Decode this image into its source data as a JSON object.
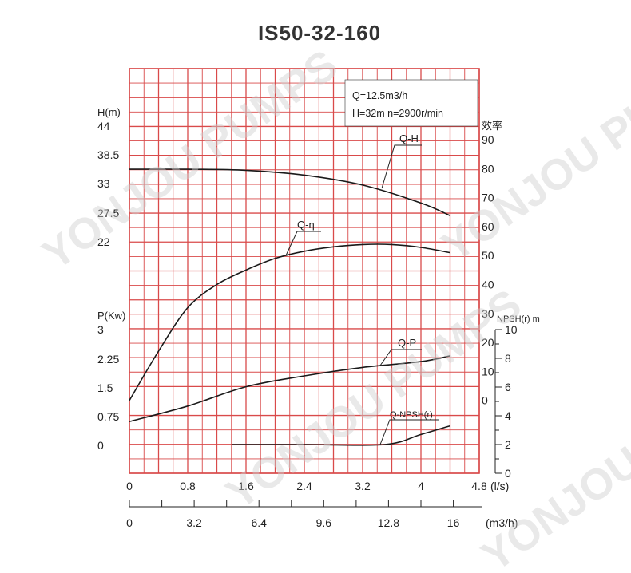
{
  "title": "IS50-32-160",
  "watermark": "YONJOU PUMPS",
  "info_box": {
    "line1": "Q=12.5m3/h",
    "line2": "H=32m  n=2900r/min"
  },
  "axes": {
    "x_ls": {
      "ticks": [
        "0",
        "0.8",
        "1.6",
        "2.4",
        "3.2",
        "4",
        "4.8"
      ],
      "unit": "(l/s)"
    },
    "x_m3h": {
      "ticks": [
        "0",
        "3.2",
        "6.4",
        "9.6",
        "12.8",
        "16"
      ],
      "unit": "(m3/h)"
    },
    "head": {
      "label": "H(m)",
      "ticks": [
        "44",
        "38.5",
        "33",
        "27.5",
        "22"
      ]
    },
    "power": {
      "label": "P(Kw)",
      "ticks": [
        "3",
        "2.25",
        "1.5",
        "0.75",
        "0"
      ]
    },
    "eff": {
      "label": "效率",
      "ticks": [
        "90",
        "80",
        "70",
        "60",
        "50",
        "40",
        "30",
        "20",
        "10",
        "0"
      ]
    },
    "npsh": {
      "label": "NPSH(r) m",
      "ticks": [
        "10",
        "8",
        "6",
        "4",
        "2",
        "0"
      ]
    }
  },
  "chart_data": {
    "type": "line",
    "x_unit": "l/s",
    "xlim": [
      0,
      4.8
    ],
    "series": [
      {
        "name": "Q-H",
        "axis": "H(m)",
        "x": [
          0,
          0.8,
          1.6,
          2.4,
          3.2,
          4.0,
          4.4
        ],
        "y": [
          35.8,
          35.8,
          35.6,
          34.7,
          32.8,
          29.4,
          27.0
        ]
      },
      {
        "name": "Q-η",
        "axis": "效率",
        "x": [
          0,
          0.4,
          0.8,
          1.2,
          1.6,
          2.0,
          2.4,
          2.8,
          3.2,
          3.6,
          4.0,
          4.4
        ],
        "y": [
          0,
          17,
          32,
          40,
          45,
          49,
          51.5,
          53,
          53.8,
          53.8,
          52.8,
          51
        ]
      },
      {
        "name": "Q-P",
        "axis": "P(Kw)",
        "x": [
          0,
          0.8,
          1.6,
          2.4,
          3.2,
          4.0,
          4.4
        ],
        "y": [
          0.6,
          1.0,
          1.5,
          1.78,
          2.0,
          2.15,
          2.3
        ]
      },
      {
        "name": "Q-NPSH(r)",
        "axis": "NPSH(r) m",
        "x": [
          1.4,
          2.4,
          3.5,
          4.0,
          4.4
        ],
        "y": [
          2.0,
          2.0,
          2.0,
          2.7,
          3.3
        ]
      }
    ]
  }
}
